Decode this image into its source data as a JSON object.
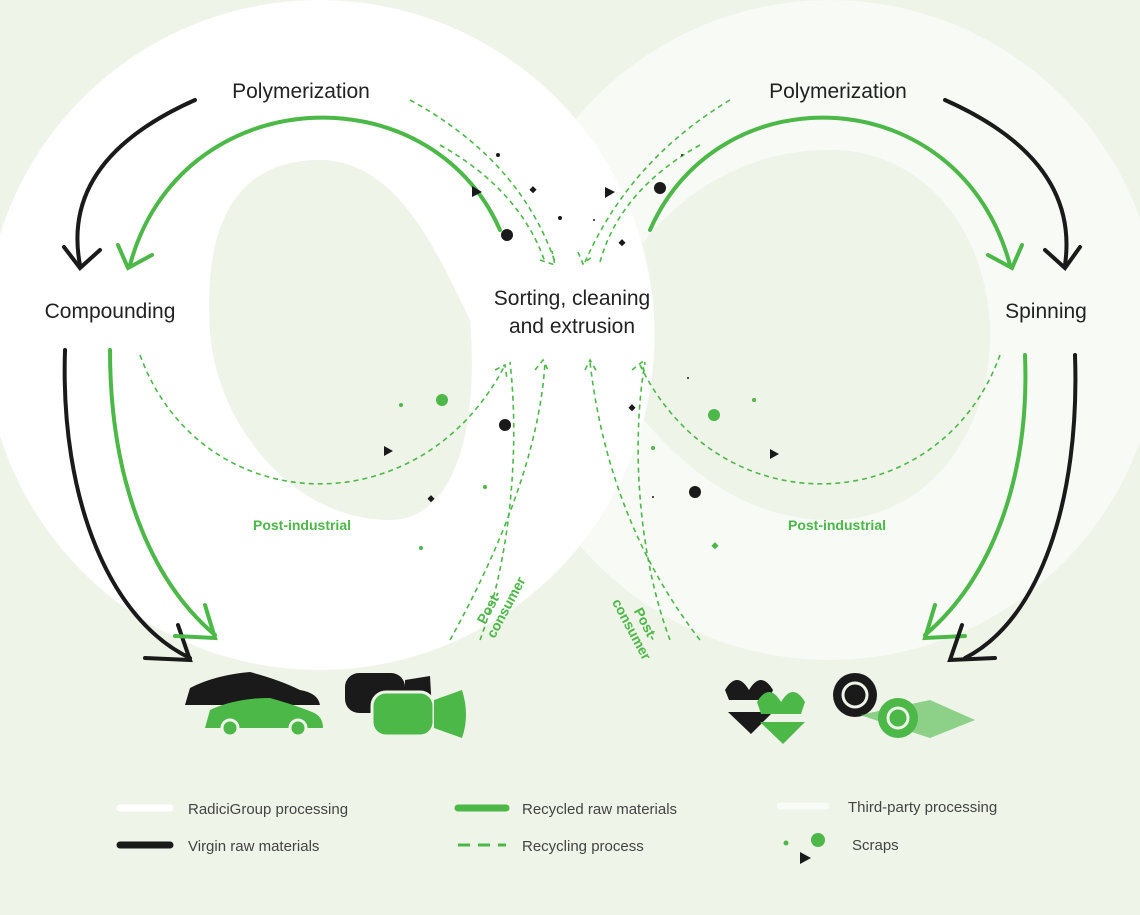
{
  "nodes": [
    {
      "label": "Polymerization"
    },
    {
      "label": "Polymerization"
    },
    {
      "label": "Compounding"
    },
    {
      "lines": [
        "Sorting, cleaning",
        "and extrusion"
      ]
    },
    {
      "label": "Spinning"
    }
  ],
  "flow_labels": [
    {
      "label": "Post-industrial"
    },
    {
      "label": "Post-industrial"
    },
    {
      "lines": [
        "Post-",
        "consumer"
      ]
    },
    {
      "lines": [
        "Post-",
        "consumer"
      ]
    }
  ],
  "legend": [
    "RadiciGroup processing",
    "Virgin raw materials",
    "Recycled raw materials",
    "Recycling process",
    "Third-party processing",
    "Scraps"
  ]
}
